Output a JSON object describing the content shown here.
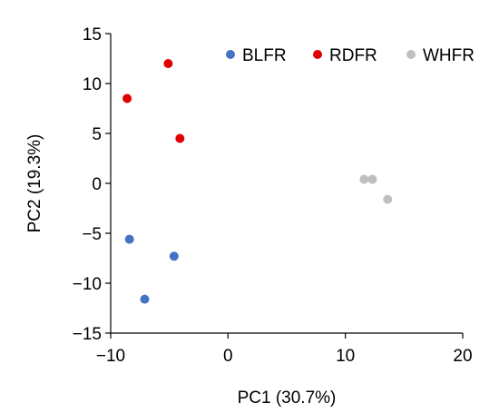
{
  "chart_data": {
    "type": "scatter",
    "title": "",
    "xlabel": "PC1 (30.7%)",
    "ylabel": "PC2 (19.3%)",
    "xlim": [
      -10,
      20
    ],
    "ylim": [
      -15,
      15
    ],
    "xticks": [
      -10,
      0,
      10,
      20
    ],
    "xtick_labels": [
      "−10",
      "0",
      "10",
      "20"
    ],
    "yticks": [
      -15,
      -10,
      -5,
      0,
      5,
      10,
      15
    ],
    "ytick_labels": [
      "−15",
      "−10",
      "−5",
      "0",
      "5",
      "10",
      "15"
    ],
    "grid": false,
    "legend_position": "top-right",
    "series": [
      {
        "name": "BLFR",
        "color": "#4472C4",
        "points": [
          [
            -8.4,
            -5.6
          ],
          [
            -4.6,
            -7.3
          ],
          [
            -7.1,
            -11.6
          ]
        ]
      },
      {
        "name": "RDFR",
        "color": "#E00000",
        "points": [
          [
            -5.1,
            12.0
          ],
          [
            -8.6,
            8.5
          ],
          [
            -4.1,
            4.5
          ]
        ]
      },
      {
        "name": "WHFR",
        "color": "#BFBFBF",
        "points": [
          [
            11.6,
            0.4
          ],
          [
            12.3,
            0.4
          ],
          [
            13.6,
            -1.6
          ]
        ]
      }
    ]
  }
}
